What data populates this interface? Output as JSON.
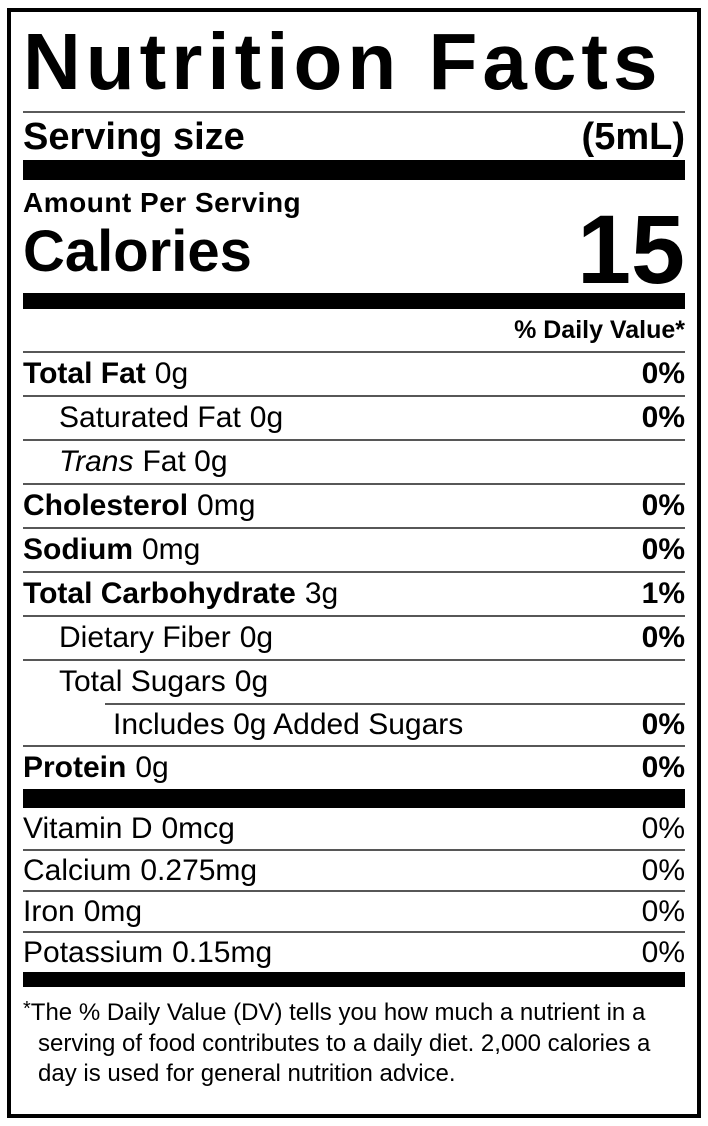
{
  "title": "Nutrition Facts",
  "serving": {
    "label": "Serving size",
    "value": "(5mL)"
  },
  "amount_per_serving": "Amount Per Serving",
  "calories": {
    "label": "Calories",
    "value": "15"
  },
  "daily_value_header": "% Daily Value*",
  "nutrients": [
    {
      "name": "Total Fat",
      "amount": "0g",
      "dv": "0%"
    },
    {
      "name": "Saturated Fat",
      "amount": "0g",
      "dv": "0%"
    },
    {
      "name": "Trans",
      "amount": "Fat 0g",
      "dv": ""
    },
    {
      "name": "Cholesterol",
      "amount": "0mg",
      "dv": "0%"
    },
    {
      "name": "Sodium",
      "amount": "0mg",
      "dv": "0%"
    },
    {
      "name": "Total Carbohydrate",
      "amount": "3g",
      "dv": "1%"
    },
    {
      "name": "Dietary Fiber",
      "amount": "0g",
      "dv": "0%"
    },
    {
      "name": "Total Sugars",
      "amount": "0g",
      "dv": ""
    },
    {
      "name": "Includes 0g Added Sugars",
      "amount": "",
      "dv": "0%"
    },
    {
      "name": "Protein",
      "amount": "0g",
      "dv": "0%"
    }
  ],
  "micronutrients": [
    {
      "name": "Vitamin D",
      "amount": "0mcg",
      "dv": "0%"
    },
    {
      "name": "Calcium",
      "amount": "0.275mg",
      "dv": "0%"
    },
    {
      "name": "Iron",
      "amount": "0mg",
      "dv": "0%"
    },
    {
      "name": "Potassium",
      "amount": "0.15mg",
      "dv": "0%"
    }
  ],
  "footnote": {
    "asterisk": "*",
    "text": "The % Daily Value (DV) tells you how much a nutrient in a serving of food contributes to a daily diet. 2,000 calories a day is used for general nutrition advice."
  },
  "colors": {
    "ink": "#000000",
    "paper": "#ffffff",
    "rule": "#575757"
  }
}
